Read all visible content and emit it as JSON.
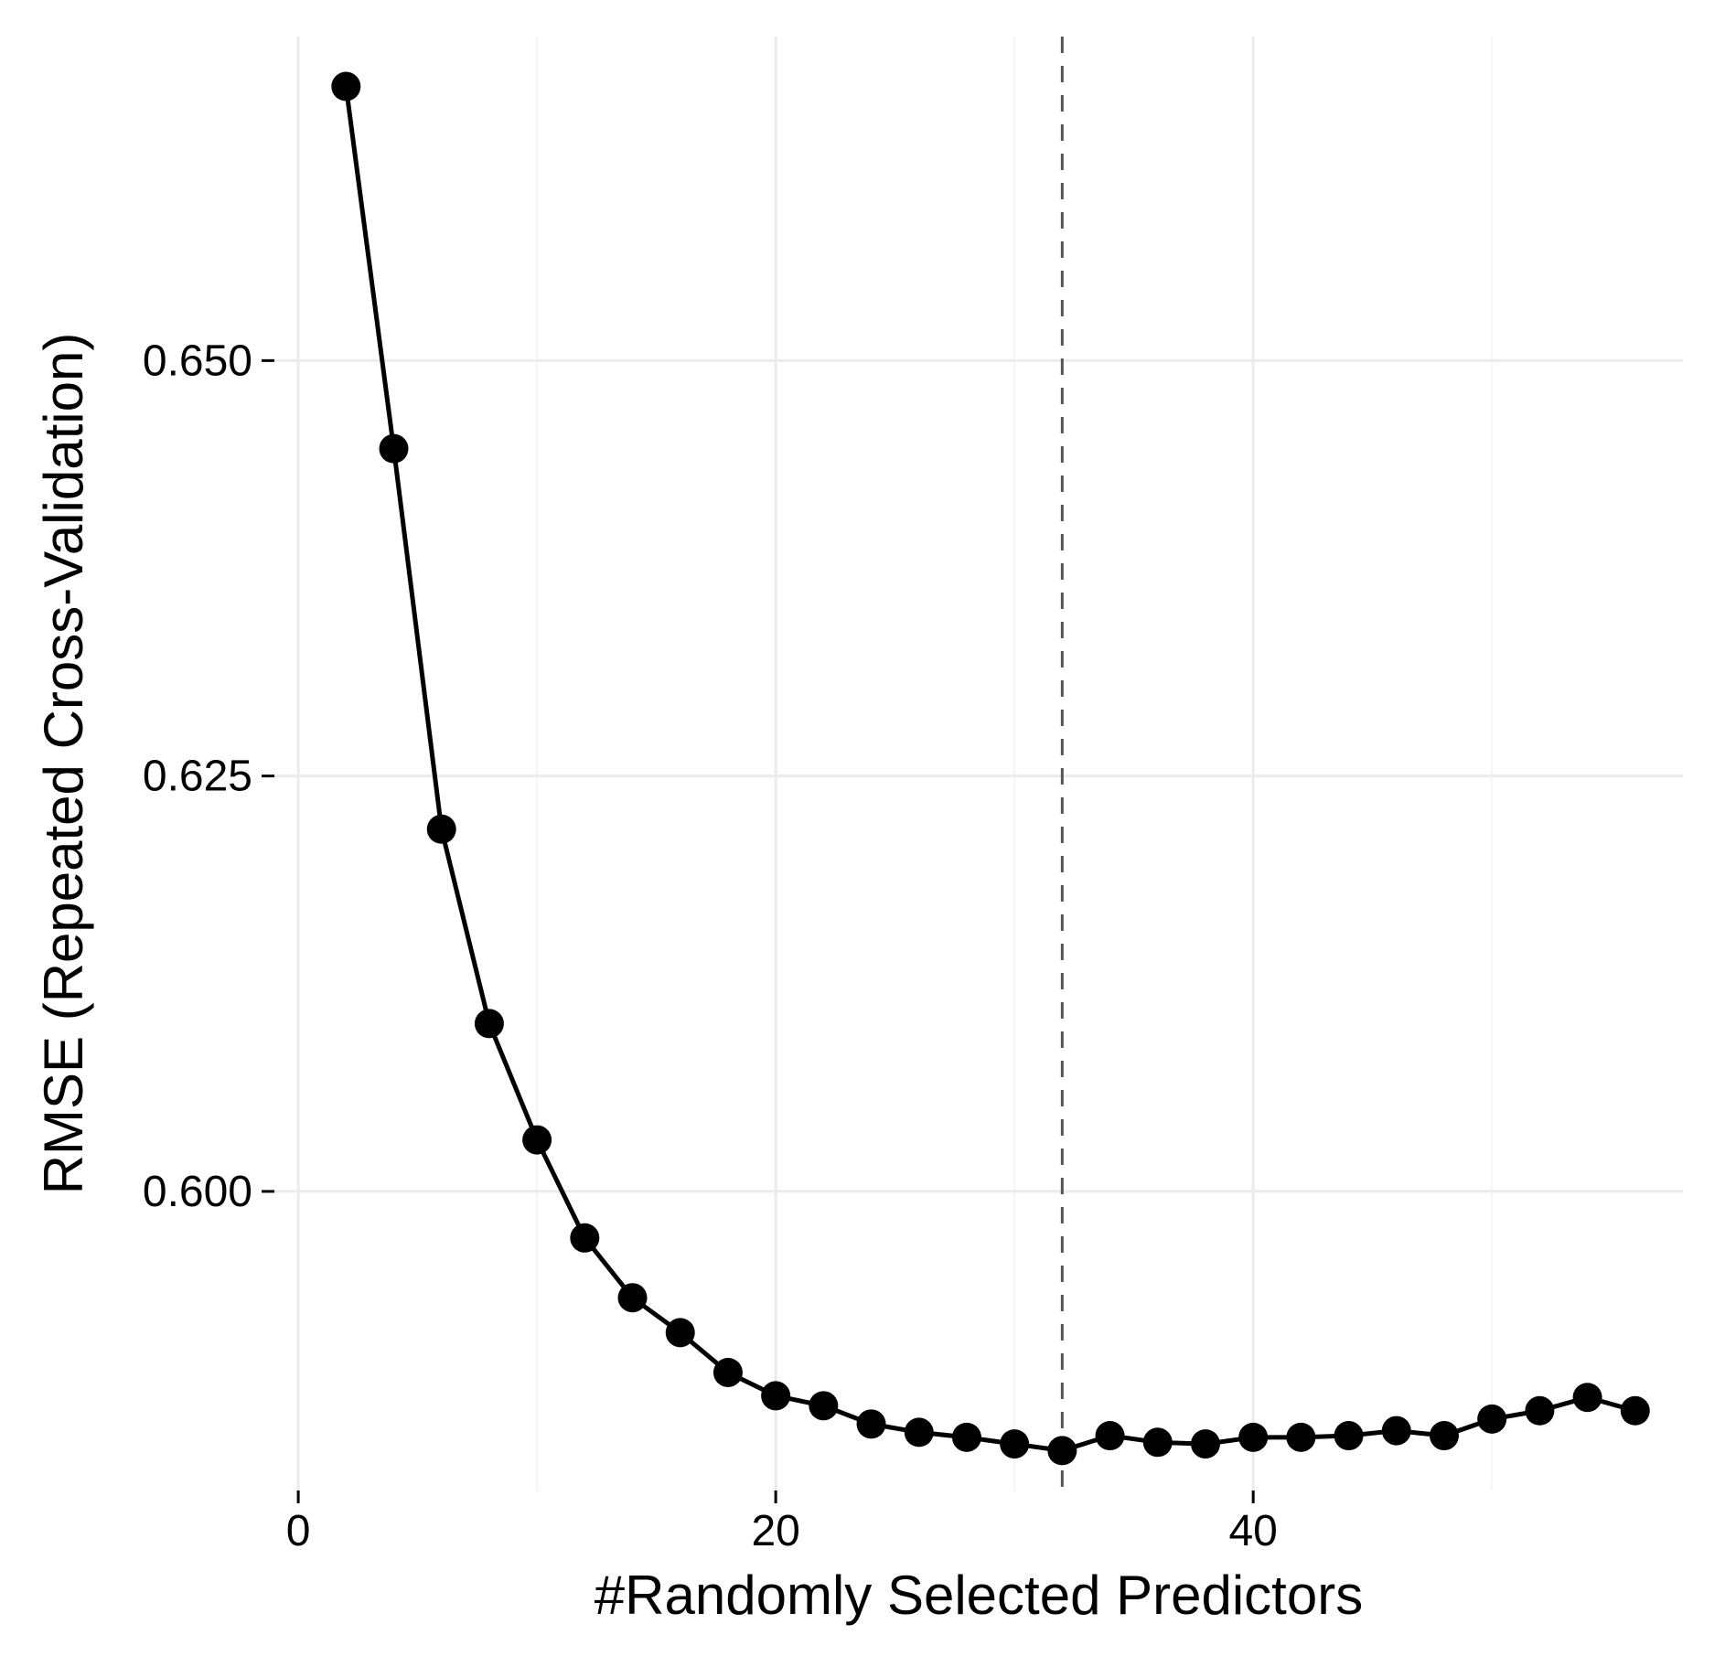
{
  "chart": {
    "type": "line",
    "xlabel": "#Randomly Selected Predictors",
    "ylabel": "RMSE (Repeated Cross-Validation)",
    "label_fontsize": 60,
    "tick_fontsize": 48,
    "background_color": "#ffffff",
    "panel_color": "#ffffff",
    "grid_major_color": "#ebebeb",
    "grid_minor_color": "#f5f5f5",
    "line_color": "#000000",
    "line_width": 5,
    "marker_color": "#000000",
    "marker_size": 16,
    "vline_x": 32,
    "vline_color": "#555555",
    "vline_width": 3,
    "xlim": [
      -1,
      58
    ],
    "ylim": [
      0.582,
      0.6695
    ],
    "xticks_major": [
      0,
      20,
      40
    ],
    "xticks_minor": [
      10,
      30,
      50
    ],
    "yticks_major": [
      0.6,
      0.625,
      0.65
    ],
    "yticks_labels": [
      "0.600",
      "0.625",
      "0.650"
    ],
    "x": [
      2,
      4,
      6,
      8,
      10,
      12,
      14,
      16,
      18,
      20,
      22,
      24,
      26,
      28,
      30,
      32,
      34,
      36,
      38,
      40,
      42,
      44,
      46,
      48,
      50,
      52,
      54,
      56
    ],
    "y": [
      0.6665,
      0.6447,
      0.6218,
      0.6101,
      0.6031,
      0.5972,
      0.5936,
      0.5915,
      0.5891,
      0.5877,
      0.5871,
      0.586,
      0.5855,
      0.5852,
      0.5848,
      0.5844,
      0.5853,
      0.5849,
      0.5848,
      0.5852,
      0.5852,
      0.5853,
      0.5856,
      0.5853,
      0.5863,
      0.5868,
      0.5876,
      0.5868
    ]
  }
}
